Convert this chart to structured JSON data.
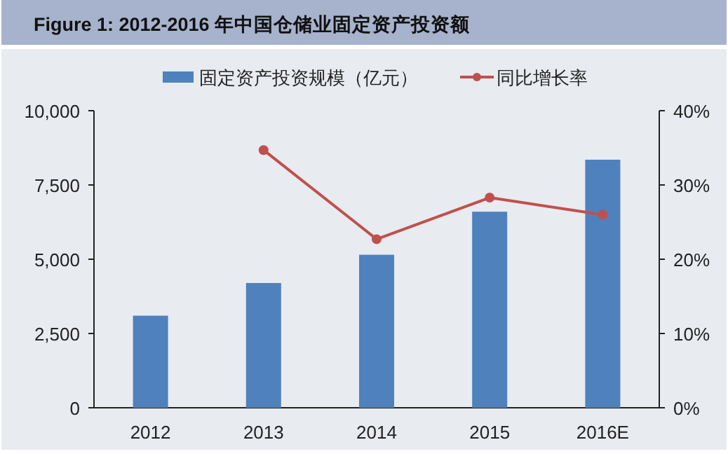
{
  "chart_data": {
    "type": "bar",
    "title": "Figure 1: 2012-2016 年中国仓储业固定资产投资额",
    "categories": [
      "2012",
      "2013",
      "2014",
      "2015",
      "2016E"
    ],
    "series": [
      {
        "name": "固定资产投资规模（亿元）",
        "color": "#4f81bd",
        "values": [
          3100,
          4200,
          5150,
          6600,
          8350
        ]
      },
      {
        "name": "同比增长率",
        "type": "line",
        "axis": "y2",
        "color": "#c0504d",
        "marker": "circle",
        "values": [
          null,
          34.7,
          22.7,
          28.3,
          26.0
        ]
      }
    ],
    "ylim": [
      0,
      10000
    ],
    "yticks": [
      0,
      {
        "value": 2500,
        "label": "2,500"
      },
      {
        "value": 5000,
        "label": "5,000"
      },
      {
        "value": 7500,
        "label": "7,500"
      },
      {
        "value": 10000,
        "label": "10,000"
      }
    ],
    "y2lim": [
      0,
      40
    ],
    "y2ticks": [
      {
        "value": 0,
        "label": "0%"
      },
      {
        "value": 10,
        "label": "10%"
      },
      {
        "value": 20,
        "label": "20%"
      },
      {
        "value": 30,
        "label": "30%"
      },
      {
        "value": 40,
        "label": "40%"
      }
    ],
    "legend": "top",
    "grid": false
  }
}
